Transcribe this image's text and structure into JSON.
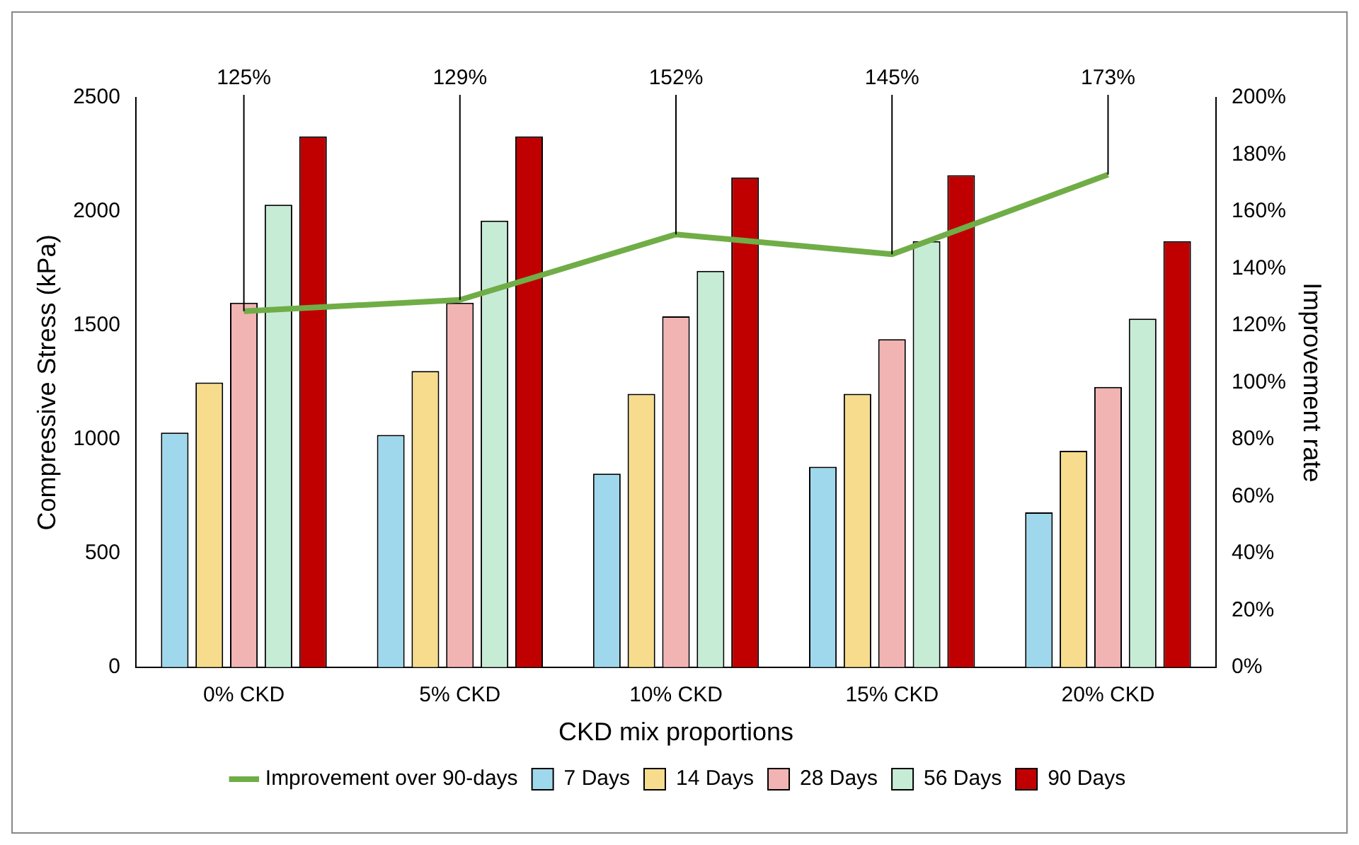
{
  "chart_data": {
    "type": "bar",
    "categories": [
      "0% CKD",
      "5% CKD",
      "10% CKD",
      "15% CKD",
      "20% CKD"
    ],
    "xlabel": "CKD mix proportions",
    "ylabel": "Compressive Stress (kPa)",
    "y2label": "Improvement rate",
    "ylim": [
      0,
      2500
    ],
    "yticks": [
      0,
      500,
      1000,
      1500,
      2000,
      2500
    ],
    "y2lim": [
      0,
      200
    ],
    "y2ticks": [
      {
        "value": 0,
        "label": "0%"
      },
      {
        "value": 20,
        "label": "20%"
      },
      {
        "value": 40,
        "label": "40%"
      },
      {
        "value": 60,
        "label": "60%"
      },
      {
        "value": 80,
        "label": "80%"
      },
      {
        "value": 100,
        "label": "100%"
      },
      {
        "value": 120,
        "label": "120%"
      },
      {
        "value": 140,
        "label": "140%"
      },
      {
        "value": 160,
        "label": "160%"
      },
      {
        "value": 180,
        "label": "180%"
      },
      {
        "value": 200,
        "label": "200%"
      }
    ],
    "grid": false,
    "legend": "bottom",
    "series": [
      {
        "name": "7 Days",
        "color": "#9fd8ec",
        "values": [
          1030,
          1020,
          850,
          880,
          680
        ]
      },
      {
        "name": "14 Days",
        "color": "#f6dc8c",
        "values": [
          1250,
          1300,
          1200,
          1200,
          950
        ]
      },
      {
        "name": "28 Days",
        "color": "#f2b3b3",
        "values": [
          1600,
          1600,
          1540,
          1440,
          1230
        ]
      },
      {
        "name": "56 Days",
        "color": "#c6ecd6",
        "values": [
          2030,
          1960,
          1740,
          1870,
          1530
        ]
      },
      {
        "name": "90 Days",
        "color": "#c00000",
        "values": [
          2330,
          2330,
          2150,
          2160,
          1870
        ]
      },
      {
        "name": "Improvement over 90-days",
        "type": "line",
        "axis": "y2",
        "color": "#70ad47",
        "marker": "none",
        "values": [
          125,
          129,
          152,
          145,
          173
        ],
        "value_labels": [
          "125%",
          "129%",
          "152%",
          "145%",
          "173%"
        ]
      }
    ]
  }
}
